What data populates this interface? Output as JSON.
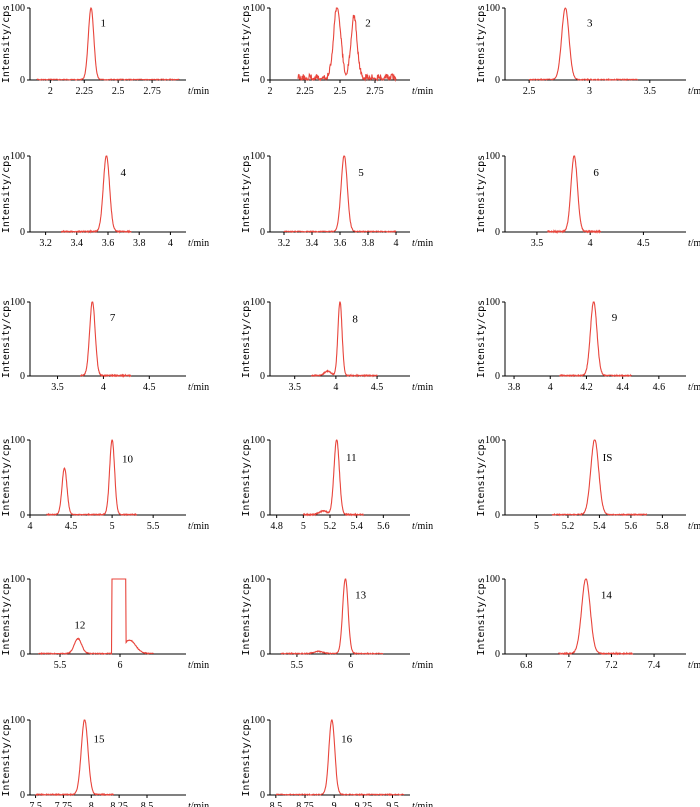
{
  "y_axis_label": "Intensity/cps",
  "x_unit_label": "t/min",
  "trace_color": "#e8453c",
  "axis_color": "#000000",
  "chart_data": [
    {
      "type": "line",
      "panel": "1",
      "ylim": [
        0,
        100
      ],
      "yticks": [
        "0",
        "100"
      ],
      "xlim": [
        1.85,
        3.0
      ],
      "xticks": [
        [
          2,
          "2"
        ],
        [
          2.25,
          "2.25"
        ],
        [
          2.5,
          "2.5"
        ],
        [
          2.75,
          "2.75"
        ]
      ],
      "trace_range": [
        1.9,
        2.95
      ],
      "peaks": [
        {
          "t": 2.3,
          "h": 100,
          "w": 0.02,
          "label": "1",
          "lx": 2.37,
          "ly": 74
        }
      ]
    },
    {
      "type": "line",
      "panel": "2",
      "ylim": [
        0,
        100
      ],
      "yticks": [
        "0",
        "100"
      ],
      "xlim": [
        2.0,
        3.0
      ],
      "xticks": [
        [
          2,
          "2"
        ],
        [
          2.25,
          "2.25"
        ],
        [
          2.5,
          "2.5"
        ],
        [
          2.75,
          "2.75"
        ]
      ],
      "trace_range": [
        2.2,
        2.9
      ],
      "noise": 8,
      "peaks": [
        {
          "t": 2.48,
          "h": 100,
          "w": 0.025,
          "label": "",
          "lx": 0,
          "ly": 0
        },
        {
          "t": 2.6,
          "h": 84,
          "w": 0.022,
          "label": "2",
          "lx": 2.68,
          "ly": 74
        }
      ]
    },
    {
      "type": "line",
      "panel": "3",
      "ylim": [
        0,
        100
      ],
      "yticks": [
        "0",
        "100"
      ],
      "xlim": [
        2.3,
        3.8
      ],
      "xticks": [
        [
          2.5,
          "2.5"
        ],
        [
          3,
          "3"
        ],
        [
          3.5,
          "3.5"
        ]
      ],
      "trace_range": [
        2.5,
        3.4
      ],
      "peaks": [
        {
          "t": 2.8,
          "h": 100,
          "w": 0.03,
          "label": "3",
          "lx": 2.98,
          "ly": 74
        }
      ]
    },
    {
      "type": "line",
      "panel": "4",
      "ylim": [
        0,
        100
      ],
      "yticks": [
        "0",
        "100"
      ],
      "xlim": [
        3.1,
        4.1
      ],
      "xticks": [
        [
          3.2,
          "3.2"
        ],
        [
          3.4,
          "3.4"
        ],
        [
          3.6,
          "3.6"
        ],
        [
          3.8,
          "3.8"
        ],
        [
          4,
          "4"
        ]
      ],
      "trace_range": [
        3.3,
        3.75
      ],
      "peaks": [
        {
          "t": 3.59,
          "h": 100,
          "w": 0.02,
          "label": "4",
          "lx": 3.68,
          "ly": 74
        }
      ]
    },
    {
      "type": "line",
      "panel": "5",
      "ylim": [
        0,
        100
      ],
      "yticks": [
        "0",
        "100"
      ],
      "xlim": [
        3.1,
        4.1
      ],
      "xticks": [
        [
          3.2,
          "3.2"
        ],
        [
          3.4,
          "3.4"
        ],
        [
          3.6,
          "3.6"
        ],
        [
          3.8,
          "3.8"
        ],
        [
          4,
          "4"
        ]
      ],
      "trace_range": [
        3.2,
        4.0
      ],
      "peaks": [
        {
          "t": 3.63,
          "h": 100,
          "w": 0.022,
          "label": "5",
          "lx": 3.73,
          "ly": 74
        }
      ]
    },
    {
      "type": "line",
      "panel": "6",
      "ylim": [
        0,
        100
      ],
      "yticks": [
        "0",
        "100"
      ],
      "xlim": [
        3.2,
        4.9
      ],
      "xticks": [
        [
          3.5,
          "3.5"
        ],
        [
          4,
          "4"
        ],
        [
          4.5,
          "4.5"
        ]
      ],
      "trace_range": [
        3.6,
        4.1
      ],
      "peaks": [
        {
          "t": 3.85,
          "h": 100,
          "w": 0.03,
          "label": "6",
          "lx": 4.03,
          "ly": 74
        }
      ]
    },
    {
      "type": "line",
      "panel": "7",
      "ylim": [
        0,
        100
      ],
      "yticks": [
        "0",
        "100"
      ],
      "xlim": [
        3.2,
        4.9
      ],
      "xticks": [
        [
          3.5,
          "3.5"
        ],
        [
          4,
          "4"
        ],
        [
          4.5,
          "4.5"
        ]
      ],
      "trace_range": [
        3.75,
        4.3
      ],
      "peaks": [
        {
          "t": 3.88,
          "h": 100,
          "w": 0.03,
          "label": "7",
          "lx": 4.07,
          "ly": 74
        }
      ]
    },
    {
      "type": "line",
      "panel": "8",
      "ylim": [
        0,
        100
      ],
      "yticks": [
        "0",
        "100"
      ],
      "xlim": [
        3.2,
        4.9
      ],
      "xticks": [
        [
          3.5,
          "3.5"
        ],
        [
          4,
          "4"
        ],
        [
          4.5,
          "4.5"
        ]
      ],
      "trace_range": [
        3.7,
        4.5
      ],
      "peaks": [
        {
          "t": 3.9,
          "h": 6,
          "w": 0.04,
          "label": "",
          "lx": 0,
          "ly": 0
        },
        {
          "t": 4.05,
          "h": 100,
          "w": 0.025,
          "label": "8",
          "lx": 4.2,
          "ly": 72
        }
      ]
    },
    {
      "type": "line",
      "panel": "9",
      "ylim": [
        0,
        100
      ],
      "yticks": [
        "0",
        "100"
      ],
      "xlim": [
        3.75,
        4.75
      ],
      "xticks": [
        [
          3.8,
          "3.8"
        ],
        [
          4,
          "4"
        ],
        [
          4.2,
          "4.2"
        ],
        [
          4.4,
          "4.4"
        ],
        [
          4.6,
          "4.6"
        ]
      ],
      "trace_range": [
        4.05,
        4.45
      ],
      "peaks": [
        {
          "t": 4.24,
          "h": 100,
          "w": 0.018,
          "label": "9",
          "lx": 4.34,
          "ly": 74
        }
      ]
    },
    {
      "type": "line",
      "panel": "10",
      "ylim": [
        0,
        100
      ],
      "yticks": [
        "0",
        "100"
      ],
      "xlim": [
        4.0,
        5.9
      ],
      "xticks": [
        [
          4,
          "4"
        ],
        [
          4.5,
          "4.5"
        ],
        [
          5,
          "5"
        ],
        [
          5.5,
          "5.5"
        ]
      ],
      "trace_range": [
        4.2,
        5.3
      ],
      "peaks": [
        {
          "t": 4.42,
          "h": 62,
          "w": 0.03,
          "label": "",
          "lx": 0,
          "ly": 0
        },
        {
          "t": 5.0,
          "h": 100,
          "w": 0.03,
          "label": "10",
          "lx": 5.12,
          "ly": 70
        }
      ]
    },
    {
      "type": "line",
      "panel": "11",
      "ylim": [
        0,
        100
      ],
      "yticks": [
        "0",
        "100"
      ],
      "xlim": [
        4.75,
        5.8
      ],
      "xticks": [
        [
          4.8,
          "4.8"
        ],
        [
          5,
          "5"
        ],
        [
          5.2,
          "5.2"
        ],
        [
          5.4,
          "5.4"
        ],
        [
          5.6,
          "5.6"
        ]
      ],
      "trace_range": [
        5.0,
        5.45
      ],
      "peaks": [
        {
          "t": 5.15,
          "h": 5,
          "w": 0.03,
          "label": "",
          "lx": 0,
          "ly": 0
        },
        {
          "t": 5.25,
          "h": 100,
          "w": 0.02,
          "label": "11",
          "lx": 5.32,
          "ly": 72
        }
      ]
    },
    {
      "type": "line",
      "panel": "IS",
      "ylim": [
        0,
        100
      ],
      "yticks": [
        "0",
        "100"
      ],
      "xlim": [
        4.8,
        5.95
      ],
      "xticks": [
        [
          5,
          "5"
        ],
        [
          5.2,
          "5.2"
        ],
        [
          5.4,
          "5.4"
        ],
        [
          5.6,
          "5.6"
        ],
        [
          5.8,
          "5.8"
        ]
      ],
      "trace_range": [
        5.1,
        5.7
      ],
      "peaks": [
        {
          "t": 5.37,
          "h": 100,
          "w": 0.025,
          "label": "IS",
          "lx": 5.42,
          "ly": 72
        }
      ]
    },
    {
      "type": "line",
      "panel": "12",
      "ylim": [
        0,
        100
      ],
      "yticks": [
        "0",
        "100"
      ],
      "xlim": [
        5.25,
        6.55
      ],
      "xticks": [
        [
          5.5,
          "5.5"
        ],
        [
          6,
          "6"
        ]
      ],
      "trace_range": [
        5.32,
        6.28
      ],
      "peaks": [
        {
          "t": 5.65,
          "h": 20,
          "w": 0.03,
          "label": "12",
          "lx": 5.62,
          "ly": 34
        },
        {
          "t": 6.08,
          "h": 18,
          "w": 0.05,
          "label": "",
          "lx": 0,
          "ly": 0
        }
      ],
      "saturated": [
        5.93,
        6.05
      ]
    },
    {
      "type": "line",
      "panel": "13",
      "ylim": [
        0,
        100
      ],
      "yticks": [
        "0",
        "100"
      ],
      "xlim": [
        5.25,
        6.55
      ],
      "xticks": [
        [
          5.5,
          "5.5"
        ],
        [
          6,
          "6"
        ]
      ],
      "trace_range": [
        5.35,
        6.3
      ],
      "peaks": [
        {
          "t": 5.7,
          "h": 3,
          "w": 0.04,
          "label": "",
          "lx": 0,
          "ly": 0
        },
        {
          "t": 5.95,
          "h": 100,
          "w": 0.025,
          "label": "13",
          "lx": 6.04,
          "ly": 74
        }
      ]
    },
    {
      "type": "line",
      "panel": "14",
      "ylim": [
        0,
        100
      ],
      "yticks": [
        "0",
        "100"
      ],
      "xlim": [
        6.7,
        7.55
      ],
      "xticks": [
        [
          6.8,
          "6.8"
        ],
        [
          7,
          "7"
        ],
        [
          7.2,
          "7.2"
        ],
        [
          7.4,
          "7.4"
        ]
      ],
      "trace_range": [
        6.95,
        7.3
      ],
      "peaks": [
        {
          "t": 7.08,
          "h": 100,
          "w": 0.02,
          "label": "14",
          "lx": 7.15,
          "ly": 74
        }
      ]
    },
    {
      "type": "line",
      "panel": "15",
      "ylim": [
        0,
        100
      ],
      "yticks": [
        "0",
        "100"
      ],
      "xlim": [
        7.45,
        8.85
      ],
      "xticks": [
        [
          7.5,
          "7.5"
        ],
        [
          7.75,
          "7.75"
        ],
        [
          8,
          "8"
        ],
        [
          8.25,
          "8.25"
        ],
        [
          8.5,
          "8.5"
        ]
      ],
      "trace_range": [
        7.5,
        8.2
      ],
      "peaks": [
        {
          "t": 7.94,
          "h": 100,
          "w": 0.03,
          "label": "15",
          "lx": 8.02,
          "ly": 70
        }
      ]
    },
    {
      "type": "line",
      "panel": "16",
      "ylim": [
        0,
        100
      ],
      "yticks": [
        "0",
        "100"
      ],
      "xlim": [
        8.45,
        9.65
      ],
      "xticks": [
        [
          8.5,
          "8.5"
        ],
        [
          8.75,
          "8.75"
        ],
        [
          9,
          "9"
        ],
        [
          9.25,
          "9.25"
        ],
        [
          9.5,
          "9.5"
        ]
      ],
      "trace_range": [
        8.5,
        9.6
      ],
      "peaks": [
        {
          "t": 8.98,
          "h": 100,
          "w": 0.025,
          "label": "16",
          "lx": 9.06,
          "ly": 70
        }
      ]
    }
  ]
}
